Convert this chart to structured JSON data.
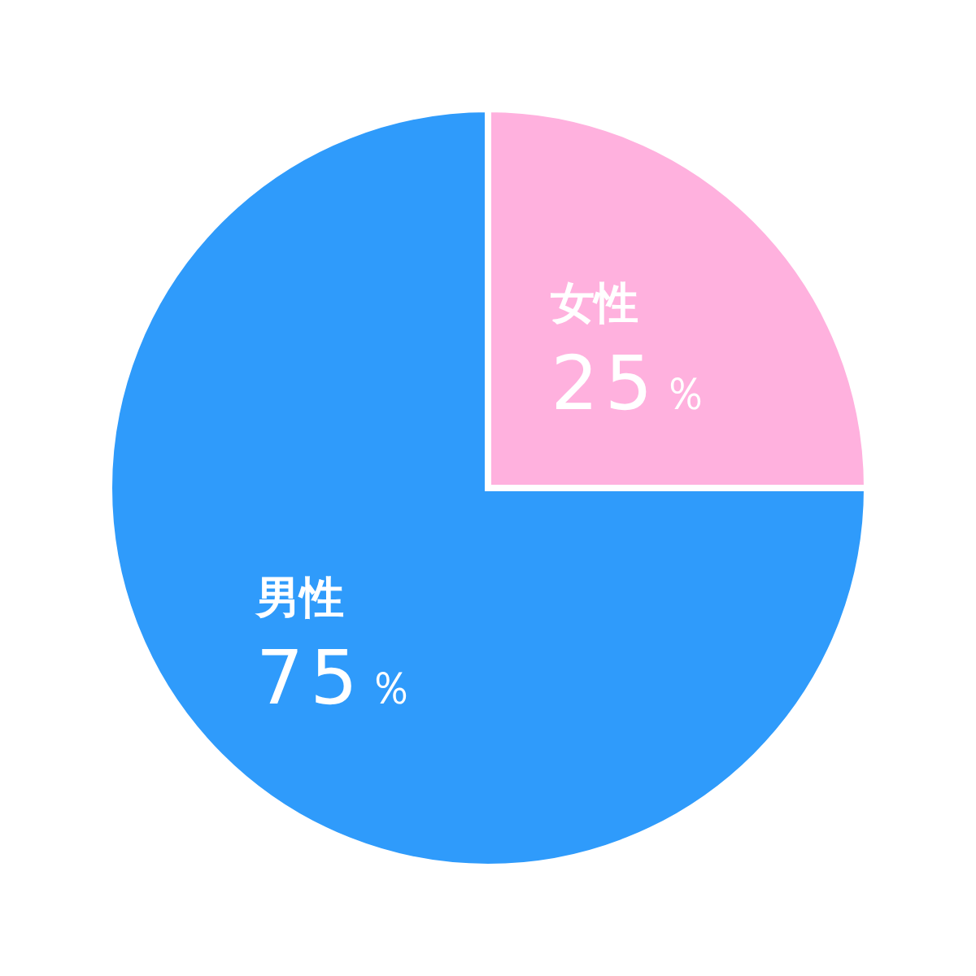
{
  "chart_data": {
    "type": "pie",
    "categories": [
      "女性",
      "男性"
    ],
    "values": [
      25,
      75
    ],
    "colors": [
      "#ffb1de",
      "#2f9bfb"
    ],
    "value_labels": [
      "25％",
      "75％"
    ]
  }
}
